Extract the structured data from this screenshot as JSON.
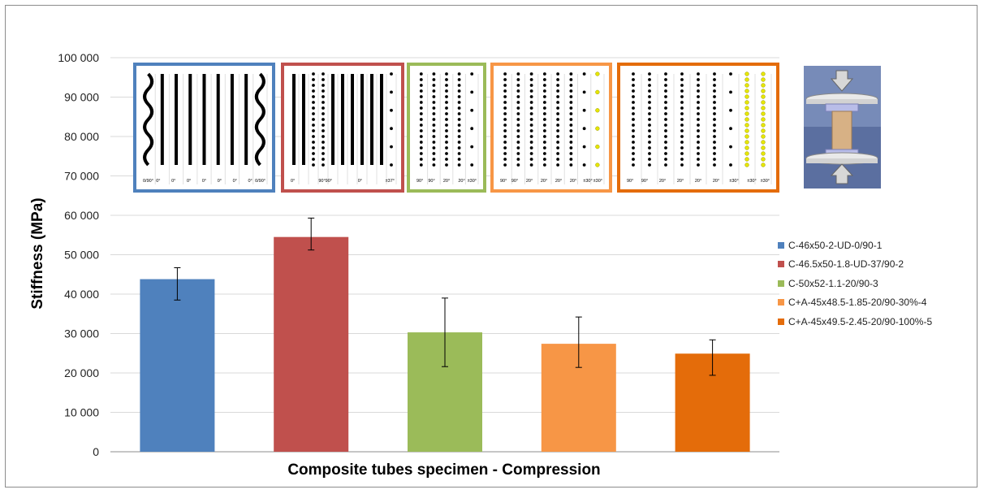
{
  "chart_data": {
    "type": "bar",
    "title": "",
    "xlabel": "Composite tubes specimen - Compression",
    "ylabel": "Stiffness (MPa)",
    "ylim": [
      0,
      100000
    ],
    "ytick_values": [
      0,
      10000,
      20000,
      30000,
      40000,
      50000,
      60000,
      70000,
      80000,
      90000,
      100000
    ],
    "ytick_labels": [
      "0",
      "10 000",
      "20 000",
      "30 000",
      "40 000",
      "50 000",
      "60 000",
      "70 000",
      "80 000",
      "90 000",
      "100 000"
    ],
    "grid": true,
    "legend_position": "right",
    "series": [
      {
        "name": "C-46x50-2-UD-0/90-1",
        "value": 43800,
        "err_low": 38500,
        "err_high": 46700,
        "color": "#4f81bd"
      },
      {
        "name": "C-46.5x50-1.8-UD-37/90-2",
        "value": 54500,
        "err_low": 51200,
        "err_high": 59300,
        "color": "#c0504d"
      },
      {
        "name": "C-50x52-1.1-20/90-3",
        "value": 30300,
        "err_low": 21600,
        "err_high": 39000,
        "color": "#9bbb59"
      },
      {
        "name": "C+A-45x48.5-1.85-20/90-30%-4",
        "value": 27400,
        "err_low": 21400,
        "err_high": 34200,
        "color": "#f79646"
      },
      {
        "name": "C+A-45x49.5-2.45-20/90-100%-5",
        "value": 24900,
        "err_low": 19400,
        "err_high": 28400,
        "color": "#e46c0a"
      }
    ]
  },
  "layup_insets": [
    {
      "border": "#4f81bd",
      "labels": [
        "0/90°",
        "0°",
        "0°",
        "0°",
        "0°",
        "0°",
        "0°",
        "0°",
        "0/90°"
      ]
    },
    {
      "border": "#c0504d",
      "labels": [
        "0°",
        "90°90°",
        "0°",
        "±37°"
      ]
    },
    {
      "border": "#9bbb59",
      "labels": [
        "90°",
        "90°",
        "20°",
        "20°",
        "±30°"
      ]
    },
    {
      "border": "#f79646",
      "labels": [
        "90°",
        "90°",
        "20°",
        "20°",
        "20°",
        "20°",
        "±30°",
        "±30°"
      ]
    },
    {
      "border": "#e46c0a",
      "labels": [
        "90°",
        "90°",
        "20°",
        "20°",
        "20°",
        "20°",
        "±30°",
        "±30°",
        "±30°"
      ]
    }
  ],
  "icons": {
    "rig": "compression-test-rig-icon"
  }
}
